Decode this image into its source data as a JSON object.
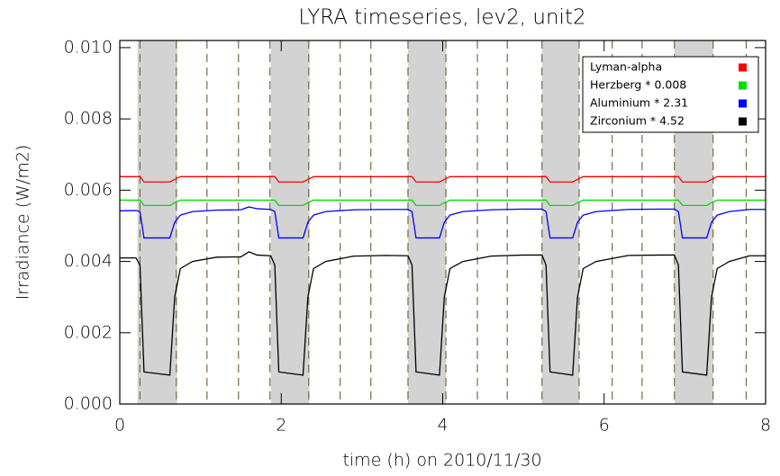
{
  "chart_data": {
    "type": "line",
    "title": "LYRA timeseries, lev2, unit2",
    "x_label": "time (h) on 2010/11/30",
    "y_label": "Irradiance (W/m2)",
    "xlim": [
      0,
      8
    ],
    "xticks": [
      0,
      2,
      4,
      6,
      8
    ],
    "ylim": [
      0,
      0.0102
    ],
    "yticks": [
      {
        "value": 0,
        "label": "0.000"
      },
      0.002,
      0.004,
      0.006,
      0.008,
      {
        "value": 0.01,
        "label": "0.010"
      }
    ],
    "legend": "upper right",
    "shaded_intervals": [
      [
        0.22,
        0.71
      ],
      [
        1.87,
        2.35
      ],
      [
        3.57,
        4.04
      ],
      [
        5.23,
        5.69
      ],
      [
        6.87,
        7.35
      ]
    ],
    "shade_color": "#d3d3d3",
    "dashed_lines": [
      0.25,
      0.7,
      1.08,
      1.47,
      1.86,
      2.34,
      2.73,
      3.11,
      3.57,
      4.04,
      4.43,
      4.8,
      5.23,
      5.69,
      6.1,
      6.47,
      6.87,
      7.35,
      7.76
    ],
    "dashed_color": "#7a6a40",
    "x": [
      0,
      0.2,
      0.25,
      0.3,
      0.62,
      0.68,
      0.75,
      0.9,
      1.2,
      1.5,
      1.6,
      1.7,
      1.87,
      1.92,
      1.97,
      2.27,
      2.33,
      2.4,
      2.55,
      2.9,
      3.3,
      3.57,
      3.62,
      3.67,
      3.96,
      4.02,
      4.09,
      4.25,
      4.6,
      5.0,
      5.23,
      5.28,
      5.33,
      5.61,
      5.67,
      5.74,
      5.9,
      6.3,
      6.7,
      6.87,
      6.92,
      6.97,
      7.27,
      7.33,
      7.4,
      7.55,
      7.8,
      8.0
    ],
    "series": [
      {
        "name": "Lyman-alpha",
        "color": "#ff0000",
        "values": [
          0.00638,
          0.00638,
          0.00638,
          0.00623,
          0.00623,
          0.0063,
          0.00638,
          0.00638,
          0.00638,
          0.00638,
          0.00638,
          0.00638,
          0.00638,
          0.00638,
          0.00623,
          0.00623,
          0.0063,
          0.00638,
          0.00638,
          0.00638,
          0.00638,
          0.00638,
          0.00638,
          0.00623,
          0.00623,
          0.0063,
          0.00638,
          0.00638,
          0.00638,
          0.00638,
          0.00638,
          0.00638,
          0.00623,
          0.00623,
          0.0063,
          0.00638,
          0.00638,
          0.00638,
          0.00638,
          0.00638,
          0.00638,
          0.00623,
          0.00623,
          0.0063,
          0.00638,
          0.00638,
          0.00638,
          0.00638
        ]
      },
      {
        "name": "Herzberg * 0.008",
        "color": "#00dd00",
        "values": [
          0.00572,
          0.00572,
          0.00572,
          0.00557,
          0.00557,
          0.00565,
          0.00572,
          0.00572,
          0.00572,
          0.00572,
          0.00572,
          0.00572,
          0.00572,
          0.00572,
          0.00557,
          0.00557,
          0.00565,
          0.00572,
          0.00572,
          0.00572,
          0.00572,
          0.00572,
          0.00572,
          0.00557,
          0.00557,
          0.00565,
          0.00572,
          0.00572,
          0.00572,
          0.00572,
          0.00572,
          0.00572,
          0.00557,
          0.00557,
          0.00565,
          0.00572,
          0.00572,
          0.00572,
          0.00572,
          0.00572,
          0.00572,
          0.00557,
          0.00557,
          0.00565,
          0.00572,
          0.00572,
          0.00572,
          0.00572
        ]
      },
      {
        "name": "Aluminium * 2.31",
        "color": "#0000ff",
        "values": [
          0.00542,
          0.00543,
          0.0054,
          0.00466,
          0.00466,
          0.0051,
          0.0053,
          0.0054,
          0.00544,
          0.00545,
          0.00553,
          0.00548,
          0.00546,
          0.0054,
          0.00466,
          0.00466,
          0.0051,
          0.0053,
          0.0054,
          0.00545,
          0.00546,
          0.00546,
          0.0054,
          0.00466,
          0.00466,
          0.0051,
          0.0053,
          0.0054,
          0.00545,
          0.00547,
          0.00547,
          0.0054,
          0.00466,
          0.00466,
          0.0051,
          0.0053,
          0.0054,
          0.00546,
          0.00547,
          0.00547,
          0.0054,
          0.00466,
          0.00466,
          0.0051,
          0.0053,
          0.0054,
          0.00546,
          0.00546
        ]
      },
      {
        "name": "Zirconium * 4.52",
        "color": "#000000",
        "values": [
          0.0041,
          0.0041,
          0.0039,
          0.0009,
          0.00081,
          0.003,
          0.0038,
          0.004,
          0.00412,
          0.00413,
          0.00427,
          0.00418,
          0.00416,
          0.0039,
          0.0009,
          0.00081,
          0.003,
          0.0038,
          0.004,
          0.00415,
          0.00417,
          0.00416,
          0.0039,
          0.0009,
          0.00081,
          0.003,
          0.0038,
          0.004,
          0.00415,
          0.00418,
          0.00418,
          0.0039,
          0.0009,
          0.00081,
          0.003,
          0.0038,
          0.004,
          0.00417,
          0.00418,
          0.00418,
          0.0039,
          0.0009,
          0.00081,
          0.003,
          0.0038,
          0.004,
          0.00416,
          0.00416
        ]
      }
    ]
  }
}
